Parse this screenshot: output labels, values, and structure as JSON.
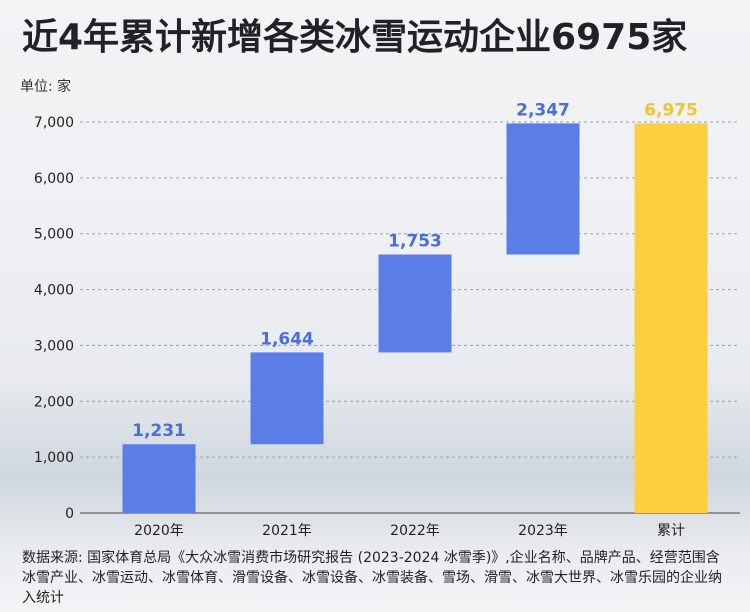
{
  "title": "近4年累计新增各类冰雪运动企业6975家",
  "unit_label": "单位: 家",
  "source_note": "数据来源: 国家体育总局《大众冰雪消费市场研究报告 (2023-2024 冰雪季)》,企业名称、品牌产品、经营范围含冰雪产业、冰雪运动、冰雪体育、滑雪设备、冰雪设备、冰雪装备、雪场、滑雪、冰雪大世界、冰雪乐园的企业纳入统计",
  "colors": {
    "increment": "#5b7ee6",
    "total": "#fbcf3d",
    "increment_label": "#4a6fd6",
    "total_label": "#f2c230"
  },
  "chart_data": {
    "type": "bar",
    "subtype": "waterfall",
    "categories": [
      "2020年",
      "2021年",
      "2022年",
      "2023年",
      "累计"
    ],
    "values": [
      1231,
      1644,
      1753,
      2347,
      6975
    ],
    "value_labels": [
      "1,231",
      "1,644",
      "1,753",
      "2,347",
      "6,975"
    ],
    "is_total": [
      false,
      false,
      false,
      false,
      true
    ],
    "yticks": [
      0,
      1000,
      2000,
      3000,
      4000,
      5000,
      6000,
      7000
    ],
    "ytick_labels": [
      "0",
      "1,000",
      "2,000",
      "3,000",
      "4,000",
      "5,000",
      "6,000",
      "7,000"
    ],
    "ylim": [
      0,
      7000
    ],
    "grid": true
  }
}
